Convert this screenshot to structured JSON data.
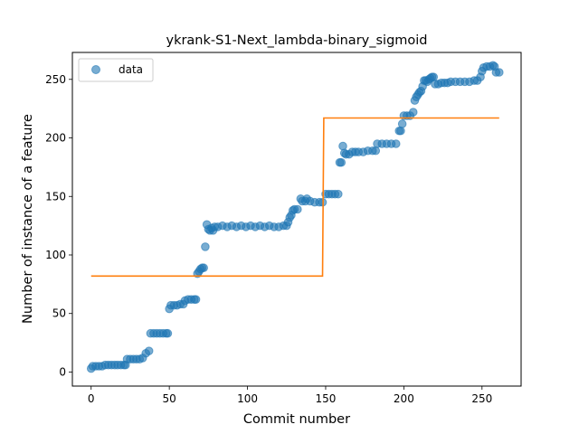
{
  "chart_data": {
    "type": "scatter",
    "title": "ykrank-S1-Next_lambda-binary_sigmoid",
    "xlabel": "Commit number",
    "ylabel": "Number of instance of a feature",
    "xlim": [
      -12,
      275
    ],
    "ylim": [
      -12,
      273
    ],
    "xticks": [
      0,
      50,
      100,
      150,
      200,
      250
    ],
    "yticks": [
      0,
      50,
      100,
      150,
      200,
      250
    ],
    "legend": {
      "position": "upper-left",
      "entries": [
        "data"
      ]
    },
    "colors": {
      "data": "#1f77b4",
      "fit": "#ff7f0e"
    },
    "series": [
      {
        "name": "data",
        "kind": "scatter",
        "points": [
          [
            0,
            3
          ],
          [
            1,
            5
          ],
          [
            3,
            5
          ],
          [
            5,
            5
          ],
          [
            7,
            5
          ],
          [
            9,
            6
          ],
          [
            11,
            6
          ],
          [
            13,
            6
          ],
          [
            15,
            6
          ],
          [
            17,
            6
          ],
          [
            19,
            6
          ],
          [
            21,
            6
          ],
          [
            22,
            6
          ],
          [
            23,
            11
          ],
          [
            25,
            11
          ],
          [
            27,
            11
          ],
          [
            29,
            11
          ],
          [
            31,
            11
          ],
          [
            33,
            12
          ],
          [
            35,
            16
          ],
          [
            37,
            18
          ],
          [
            38,
            33
          ],
          [
            40,
            33
          ],
          [
            42,
            33
          ],
          [
            44,
            33
          ],
          [
            46,
            33
          ],
          [
            48,
            33
          ],
          [
            49,
            33
          ],
          [
            50,
            54
          ],
          [
            51,
            57
          ],
          [
            53,
            57
          ],
          [
            55,
            57
          ],
          [
            57,
            58
          ],
          [
            59,
            58
          ],
          [
            60,
            61
          ],
          [
            62,
            62
          ],
          [
            64,
            62
          ],
          [
            66,
            62
          ],
          [
            67,
            62
          ],
          [
            68,
            84
          ],
          [
            69,
            86
          ],
          [
            70,
            88
          ],
          [
            71,
            89
          ],
          [
            72,
            89
          ],
          [
            73,
            107
          ],
          [
            74,
            126
          ],
          [
            75,
            122
          ],
          [
            76,
            121
          ],
          [
            77,
            123
          ],
          [
            78,
            121
          ],
          [
            79,
            124
          ],
          [
            81,
            124
          ],
          [
            84,
            125
          ],
          [
            87,
            124
          ],
          [
            90,
            125
          ],
          [
            93,
            124
          ],
          [
            96,
            125
          ],
          [
            99,
            124
          ],
          [
            102,
            125
          ],
          [
            105,
            124
          ],
          [
            108,
            125
          ],
          [
            111,
            124
          ],
          [
            114,
            125
          ],
          [
            117,
            124
          ],
          [
            120,
            124
          ],
          [
            123,
            125
          ],
          [
            125,
            125
          ],
          [
            126,
            128
          ],
          [
            127,
            132
          ],
          [
            128,
            134
          ],
          [
            129,
            138
          ],
          [
            130,
            139
          ],
          [
            132,
            139
          ],
          [
            134,
            148
          ],
          [
            135,
            146
          ],
          [
            137,
            146
          ],
          [
            138,
            148
          ],
          [
            140,
            146
          ],
          [
            143,
            145
          ],
          [
            146,
            145
          ],
          [
            148,
            145
          ],
          [
            150,
            152
          ],
          [
            152,
            152
          ],
          [
            154,
            152
          ],
          [
            156,
            152
          ],
          [
            158,
            152
          ],
          [
            159,
            179
          ],
          [
            160,
            179
          ],
          [
            161,
            193
          ],
          [
            162,
            187
          ],
          [
            163,
            186
          ],
          [
            165,
            186
          ],
          [
            167,
            188
          ],
          [
            169,
            188
          ],
          [
            171,
            188
          ],
          [
            174,
            188
          ],
          [
            177,
            189
          ],
          [
            180,
            189
          ],
          [
            182,
            189
          ],
          [
            183,
            195
          ],
          [
            186,
            195
          ],
          [
            189,
            195
          ],
          [
            192,
            195
          ],
          [
            195,
            195
          ],
          [
            197,
            206
          ],
          [
            198,
            206
          ],
          [
            199,
            212
          ],
          [
            200,
            219
          ],
          [
            202,
            219
          ],
          [
            204,
            219
          ],
          [
            206,
            222
          ],
          [
            207,
            232
          ],
          [
            208,
            235
          ],
          [
            209,
            237
          ],
          [
            210,
            239
          ],
          [
            211,
            240
          ],
          [
            212,
            244
          ],
          [
            213,
            249
          ],
          [
            214,
            249
          ],
          [
            215,
            248
          ],
          [
            216,
            250
          ],
          [
            217,
            251
          ],
          [
            218,
            252
          ],
          [
            219,
            252
          ],
          [
            220,
            246
          ],
          [
            222,
            246
          ],
          [
            224,
            247
          ],
          [
            226,
            247
          ],
          [
            228,
            247
          ],
          [
            230,
            248
          ],
          [
            233,
            248
          ],
          [
            236,
            248
          ],
          [
            239,
            248
          ],
          [
            242,
            248
          ],
          [
            245,
            249
          ],
          [
            247,
            249
          ],
          [
            249,
            252
          ],
          [
            250,
            257
          ],
          [
            251,
            260
          ],
          [
            253,
            261
          ],
          [
            255,
            261
          ],
          [
            257,
            262
          ],
          [
            258,
            261
          ],
          [
            259,
            256
          ],
          [
            261,
            256
          ]
        ]
      },
      {
        "name": "",
        "kind": "line",
        "points": [
          [
            0,
            82
          ],
          [
            148,
            82
          ],
          [
            148.8,
            217
          ],
          [
            261,
            217
          ]
        ]
      }
    ]
  }
}
